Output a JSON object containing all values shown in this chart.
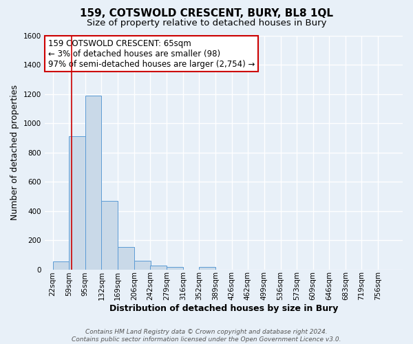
{
  "title": "159, COTSWOLD CRESCENT, BURY, BL8 1QL",
  "subtitle": "Size of property relative to detached houses in Bury",
  "xlabel": "Distribution of detached houses by size in Bury",
  "ylabel": "Number of detached properties",
  "bin_labels": [
    "22sqm",
    "59sqm",
    "95sqm",
    "132sqm",
    "169sqm",
    "206sqm",
    "242sqm",
    "279sqm",
    "316sqm",
    "352sqm",
    "389sqm",
    "426sqm",
    "462sqm",
    "499sqm",
    "536sqm",
    "573sqm",
    "609sqm",
    "646sqm",
    "683sqm",
    "719sqm",
    "756sqm"
  ],
  "bin_left_edges": [
    22,
    59,
    95,
    132,
    169,
    206,
    242,
    279,
    316,
    352,
    389,
    426,
    462,
    499,
    536,
    573,
    609,
    646,
    683,
    719,
    756
  ],
  "bar_values": [
    55,
    910,
    1190,
    470,
    152,
    60,
    28,
    18,
    0,
    18,
    0,
    0,
    0,
    0,
    0,
    0,
    0,
    0,
    0,
    0,
    0
  ],
  "bar_color": "#c9d9e8",
  "bar_edge_color": "#5b9bd5",
  "property_size": 65,
  "property_line_color": "#cc0000",
  "annotation_line1": "159 COTSWOLD CRESCENT: 65sqm",
  "annotation_line2": "← 3% of detached houses are smaller (98)",
  "annotation_line3": "97% of semi-detached houses are larger (2,754) →",
  "annotation_box_color": "#ffffff",
  "annotation_box_edge_color": "#cc0000",
  "ylim": [
    0,
    1600
  ],
  "yticks": [
    0,
    200,
    400,
    600,
    800,
    1000,
    1200,
    1400,
    1600
  ],
  "footer_line1": "Contains HM Land Registry data © Crown copyright and database right 2024.",
  "footer_line2": "Contains public sector information licensed under the Open Government Licence v3.0.",
  "background_color": "#e8f0f8",
  "grid_color": "#ffffff",
  "title_fontsize": 11,
  "subtitle_fontsize": 9.5,
  "axis_label_fontsize": 9,
  "tick_fontsize": 7.5,
  "annotation_fontsize": 8.5,
  "footer_fontsize": 6.5
}
